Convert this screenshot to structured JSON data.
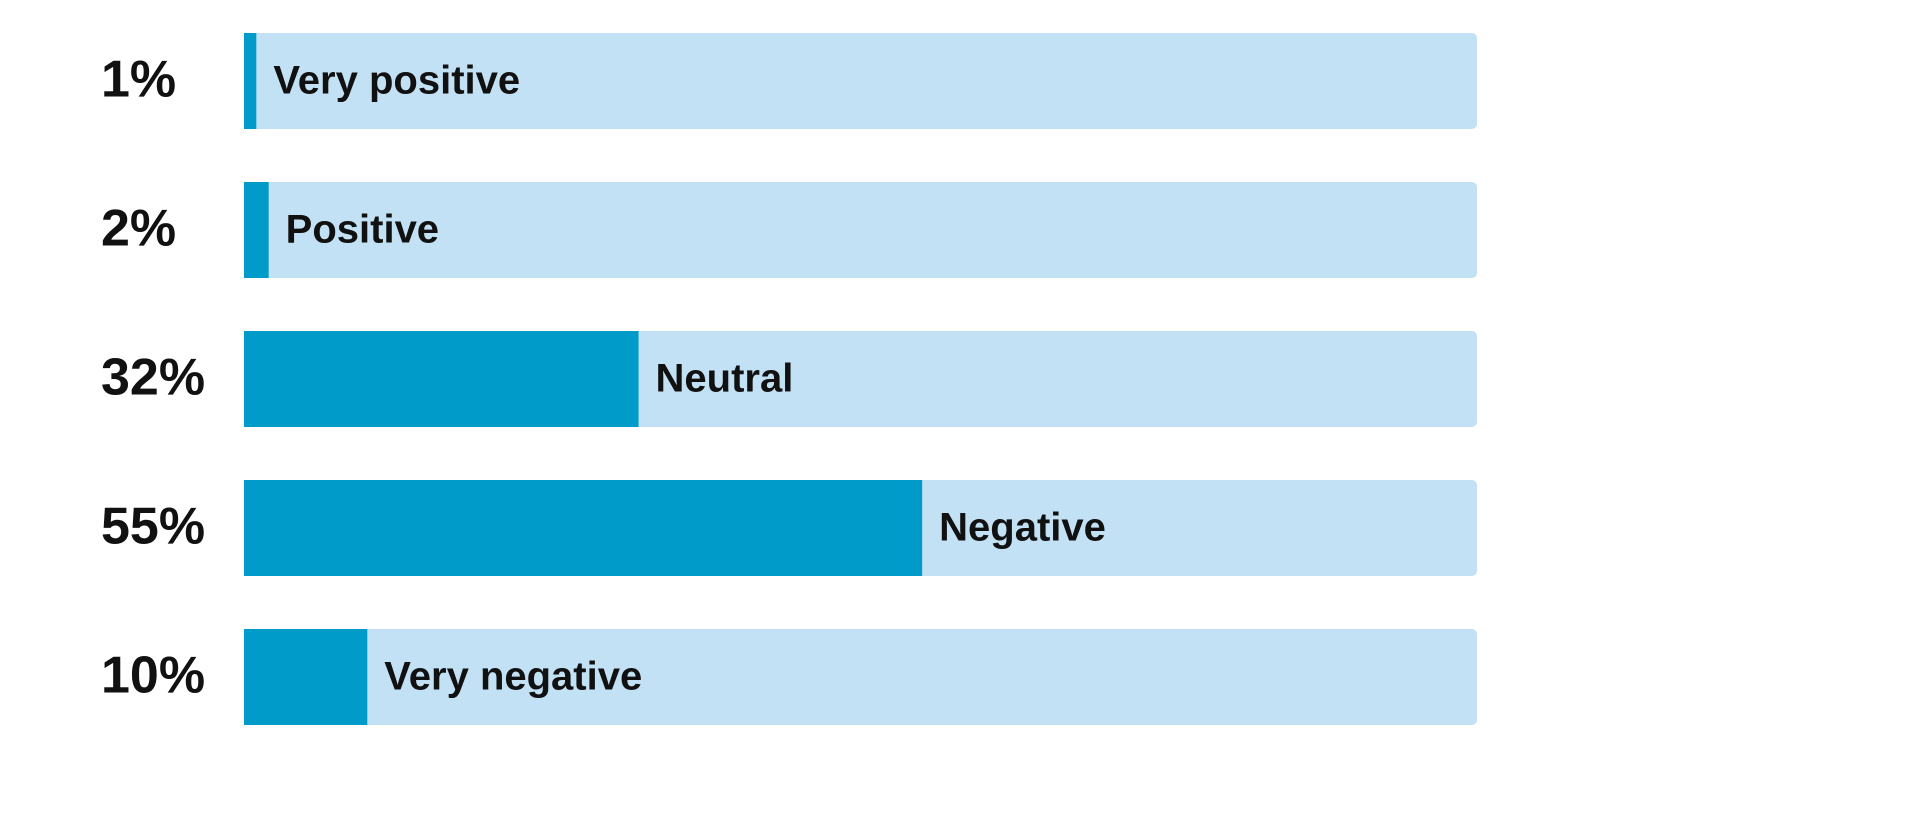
{
  "chart_data": {
    "type": "bar",
    "orientation": "horizontal",
    "categories": [
      "Very positive",
      "Positive",
      "Neutral",
      "Negative",
      "Very negative"
    ],
    "values": [
      1,
      2,
      32,
      55,
      10
    ],
    "value_labels": [
      "1%",
      "2%",
      "32%",
      "55%",
      "10%"
    ],
    "xlim": [
      0,
      100
    ],
    "color": "#009bc8",
    "track_color": "#c3e1f4"
  }
}
